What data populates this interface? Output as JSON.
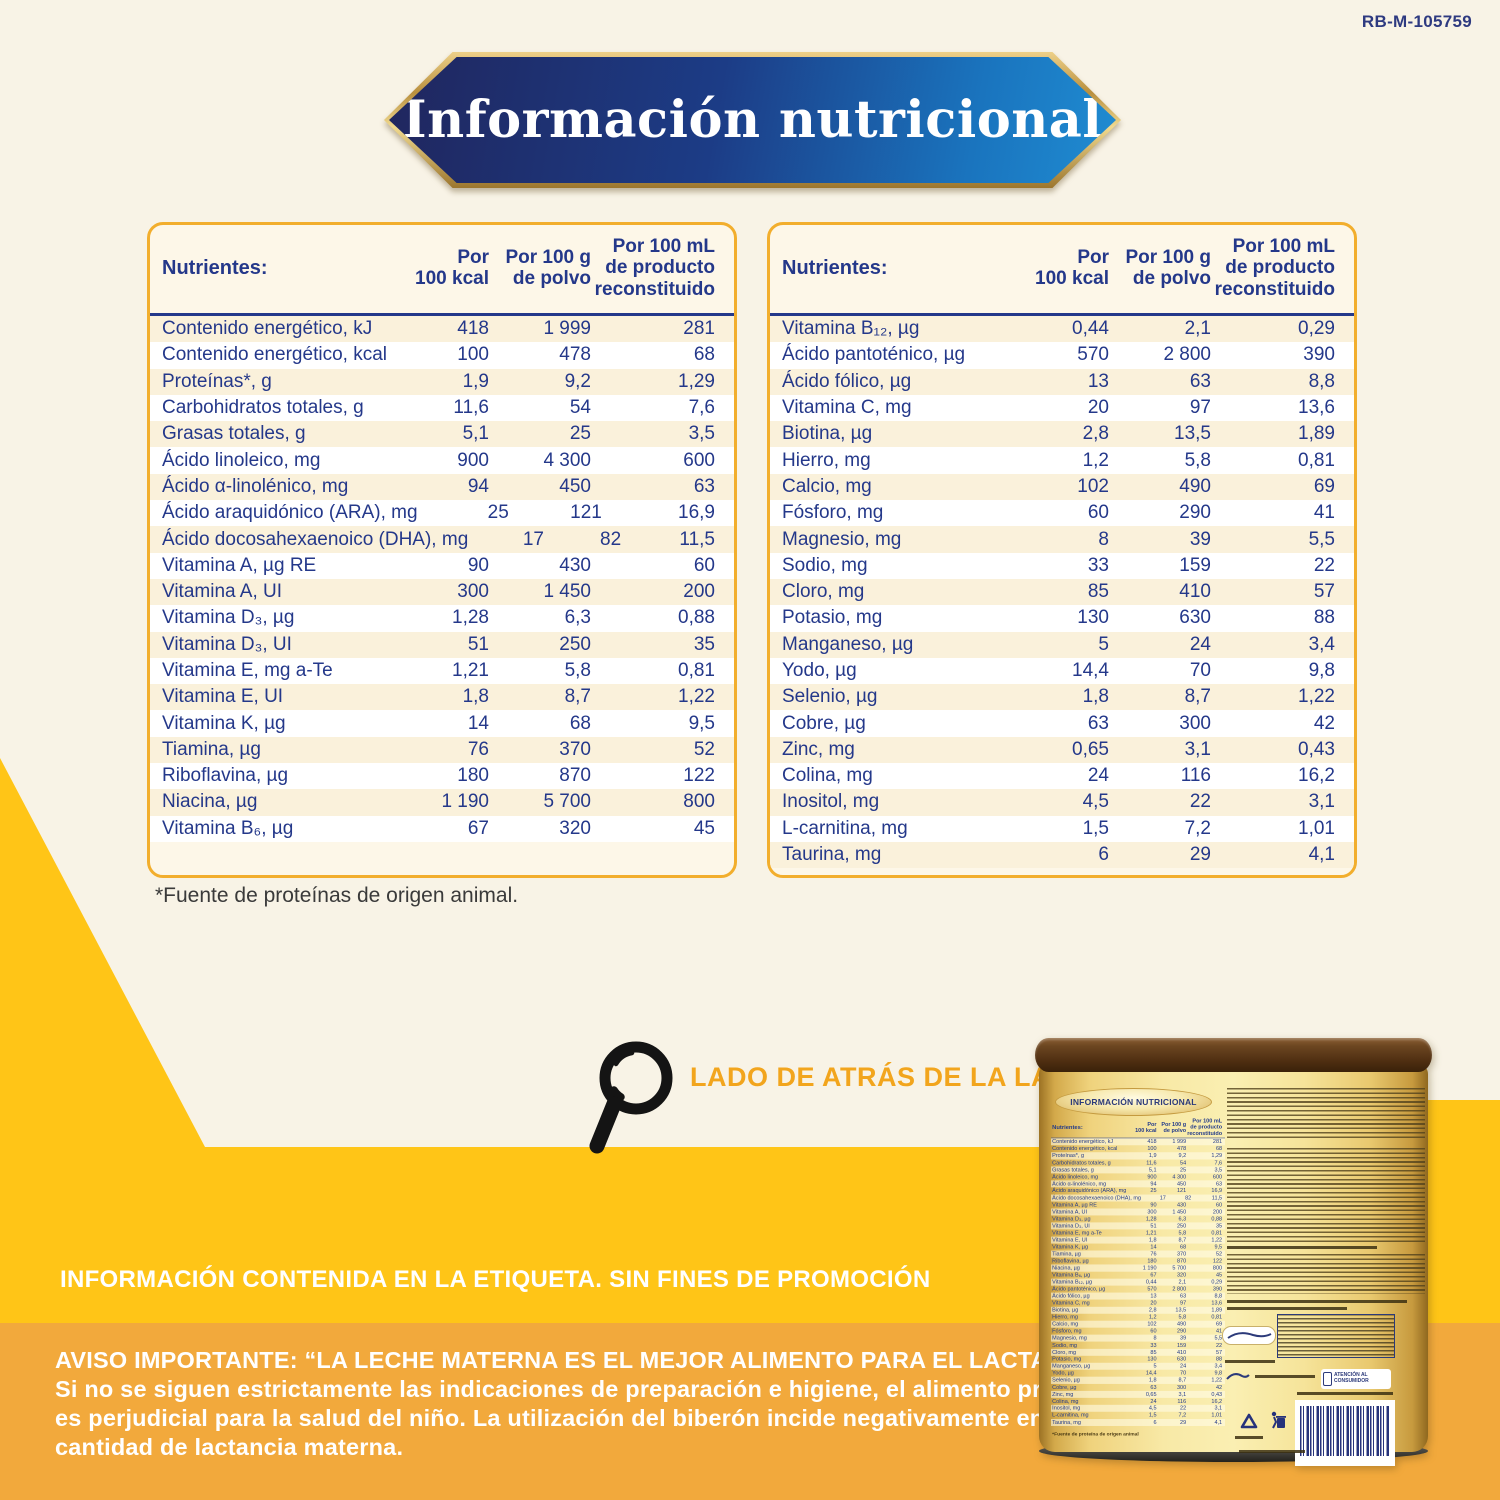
{
  "page": {
    "code": "RB-M-105759"
  },
  "banner": {
    "title": "Información nutricional"
  },
  "table_columns": {
    "nutrients": "Nutrientes:",
    "col1": "Por\n100 kcal",
    "col2": "Por 100 g\nde polvo",
    "col3": "Por 100 mL\nde producto\nreconstituido"
  },
  "tables": [
    {
      "rows": [
        [
          "Contenido energético, kJ",
          "418",
          "1 999",
          "281"
        ],
        [
          "Contenido energético, kcal",
          "100",
          "478",
          "68"
        ],
        [
          "Proteínas*, g",
          "1,9",
          "9,2",
          "1,29"
        ],
        [
          "Carbohidratos totales, g",
          "11,6",
          "54",
          "7,6"
        ],
        [
          "Grasas totales, g",
          "5,1",
          "25",
          "3,5"
        ],
        [
          "Ácido linoleico, mg",
          "900",
          "4 300",
          "600"
        ],
        [
          "Ácido α-linolénico, mg",
          "94",
          "450",
          "63"
        ],
        [
          "Ácido araquidónico (ARA), mg",
          "25",
          "121",
          "16,9"
        ],
        [
          "Ácido docosahexaenoico (DHA), mg",
          "17",
          "82",
          "11,5"
        ],
        [
          "Vitamina A, µg RE",
          "90",
          "430",
          "60"
        ],
        [
          "Vitamina A, UI",
          "300",
          "1 450",
          "200"
        ],
        [
          "Vitamina D₃, µg",
          "1,28",
          "6,3",
          "0,88"
        ],
        [
          "Vitamina D₃, UI",
          "51",
          "250",
          "35"
        ],
        [
          "Vitamina E, mg a-Te",
          "1,21",
          "5,8",
          "0,81"
        ],
        [
          "Vitamina E, UI",
          "1,8",
          "8,7",
          "1,22"
        ],
        [
          "Vitamina K, µg",
          "14",
          "68",
          "9,5"
        ],
        [
          "Tiamina, µg",
          "76",
          "370",
          "52"
        ],
        [
          "Riboflavina, µg",
          "180",
          "870",
          "122"
        ],
        [
          "Niacina, µg",
          "1 190",
          "5 700",
          "800"
        ],
        [
          "Vitamina B₆, µg",
          "67",
          "320",
          "45"
        ]
      ]
    },
    {
      "rows": [
        [
          "Vitamina B₁₂, µg",
          "0,44",
          "2,1",
          "0,29"
        ],
        [
          "Ácido pantoténico, µg",
          "570",
          "2 800",
          "390"
        ],
        [
          "Ácido fólico, µg",
          "13",
          "63",
          "8,8"
        ],
        [
          "Vitamina C, mg",
          "20",
          "97",
          "13,6"
        ],
        [
          "Biotina, µg",
          "2,8",
          "13,5",
          "1,89"
        ],
        [
          "Hierro, mg",
          "1,2",
          "5,8",
          "0,81"
        ],
        [
          "Calcio, mg",
          "102",
          "490",
          "69"
        ],
        [
          "Fósforo, mg",
          "60",
          "290",
          "41"
        ],
        [
          "Magnesio, mg",
          "8",
          "39",
          "5,5"
        ],
        [
          "Sodio, mg",
          "33",
          "159",
          "22"
        ],
        [
          "Cloro, mg",
          "85",
          "410",
          "57"
        ],
        [
          "Potasio, mg",
          "130",
          "630",
          "88"
        ],
        [
          "Manganeso, µg",
          "5",
          "24",
          "3,4"
        ],
        [
          "Yodo, µg",
          "14,4",
          "70",
          "9,8"
        ],
        [
          "Selenio, µg",
          "1,8",
          "8,7",
          "1,22"
        ],
        [
          "Cobre, µg",
          "63",
          "300",
          "42"
        ],
        [
          "Zinc, mg",
          "0,65",
          "3,1",
          "0,43"
        ],
        [
          "Colina, mg",
          "24",
          "116",
          "16,2"
        ],
        [
          "Inositol, mg",
          "4,5",
          "22",
          "3,1"
        ],
        [
          "L-carnitina, mg",
          "1,5",
          "7,2",
          "1,01"
        ],
        [
          "Taurina, mg",
          "6",
          "29",
          "4,1"
        ]
      ]
    }
  ],
  "footnote": "*Fuente de proteínas de origen animal.",
  "back_label_caption": "LADO DE ATRÁS DE LA LATA",
  "disclaimer": "INFORMACIÓN CONTENIDA EN LA ETIQUETA. SIN FINES DE PROMOCIÓN",
  "warning": "AVISO IMPORTANTE: “LA LECHE MATERNA ES EL MEJOR ALIMENTO PARA EL LACTANTE”.\nSi no se siguen estrictamente las indicaciones de preparación e higiene, el alimento promocionado\nes perjudicial para la salud del niño. La utilización del biberón incide negativamente en la calidad y\ncantidad de lactancia materna.",
  "can": {
    "title": "INFORMACIÓN NUTRICIONAL",
    "consumer_service": "ATENCIÓN AL CONSUMIDOR",
    "footnote": "*Fuente de proteína de origen animal"
  },
  "colors": {
    "yellow": "#FFC517",
    "amber": "#F2A93C",
    "cream": "#F8F3E6",
    "navy": "#24388A",
    "gold_border": "#F2AE2D",
    "banner_left": "#232E6D",
    "banner_right": "#1E86CD",
    "caption_orange": "#F2A51D"
  }
}
